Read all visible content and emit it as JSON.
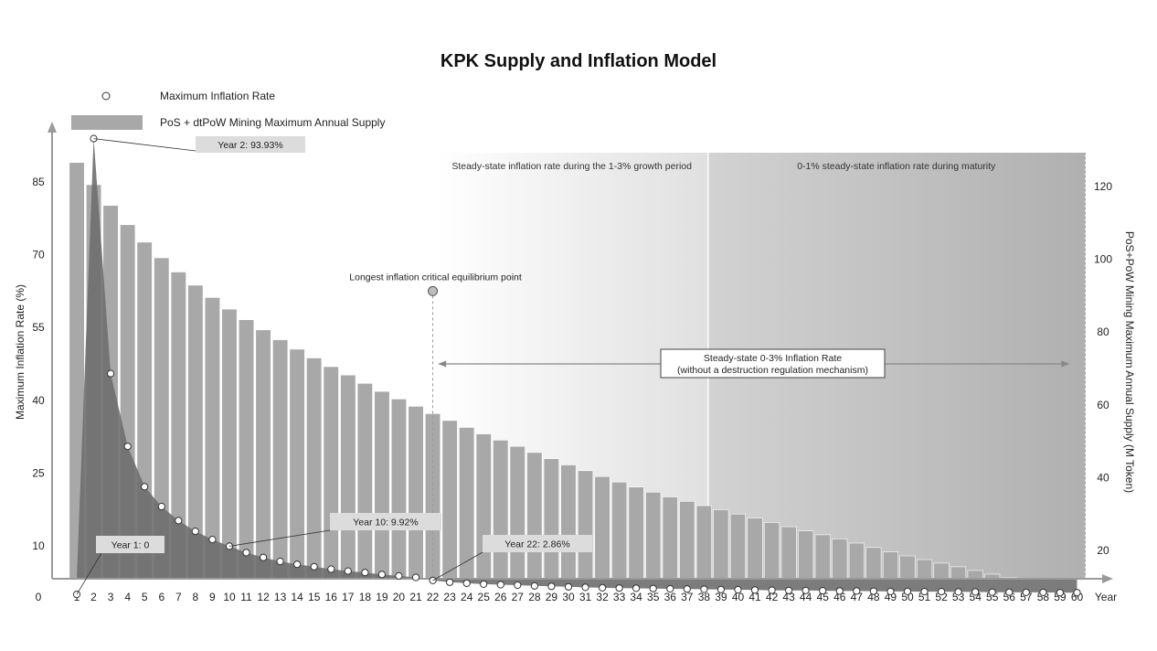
{
  "chart_data": {
    "type": "bar+line",
    "title": "KPK Supply and Inflation Model",
    "legend": {
      "line_label": "Maximum Inflation Rate",
      "bar_label": "PoS + dtPoW Mining Maximum Annual Supply",
      "placement": "top-left"
    },
    "xlabel": "Year",
    "x_origin_label": "0",
    "left_ylabel": "Maximum Inflation Rate (%)",
    "right_ylabel": "PoS+PoW Mining Maximum Annual Supply  (M Token)",
    "left_yticks": [
      "10",
      "25",
      "40",
      "55",
      "70",
      "85"
    ],
    "right_yticks": [
      "20",
      "40",
      "60",
      "80",
      "100",
      "120"
    ],
    "years": [
      1,
      2,
      3,
      4,
      5,
      6,
      7,
      8,
      9,
      10,
      11,
      12,
      13,
      14,
      15,
      16,
      17,
      18,
      19,
      20,
      21,
      22,
      23,
      24,
      25,
      26,
      27,
      28,
      29,
      30,
      31,
      32,
      33,
      34,
      35,
      36,
      37,
      38,
      39,
      40,
      41,
      42,
      43,
      44,
      45,
      46,
      47,
      48,
      49,
      50,
      51,
      52,
      53,
      54,
      55,
      56,
      57,
      58,
      59,
      60
    ],
    "supply_m_token": [
      126.6,
      120.5,
      114.8,
      109.5,
      104.7,
      100.4,
      96.5,
      92.9,
      89.5,
      86.3,
      83.4,
      80.6,
      77.9,
      75.3,
      72.9,
      70.5,
      68.2,
      65.9,
      63.7,
      61.6,
      59.6,
      57.6,
      55.7,
      53.8,
      52.0,
      50.3,
      48.6,
      46.9,
      45.2,
      43.5,
      41.9,
      40.3,
      38.8,
      37.4,
      36.0,
      34.7,
      33.5,
      32.3,
      31.2,
      30.0,
      28.9,
      27.7,
      26.5,
      25.4,
      24.3,
      23.2,
      22.0,
      20.8,
      19.6,
      18.5,
      17.5,
      16.5,
      15.5,
      14.5,
      13.5,
      12.5,
      11.5,
      10.5,
      9.4,
      8.5
    ],
    "inflation_pct": [
      0.0,
      93.93,
      45.5,
      30.5,
      22.2,
      18.1,
      15.2,
      13.0,
      11.3,
      9.92,
      8.6,
      7.6,
      6.8,
      6.2,
      5.7,
      5.2,
      4.8,
      4.5,
      4.1,
      3.8,
      3.5,
      2.86,
      2.5,
      2.3,
      2.1,
      2.0,
      1.9,
      1.75,
      1.65,
      1.55,
      1.45,
      1.35,
      1.3,
      1.25,
      1.2,
      1.15,
      1.1,
      1.05,
      1.0,
      0.95,
      0.9,
      0.85,
      0.8,
      0.8,
      0.75,
      0.7,
      0.7,
      0.65,
      0.6,
      0.6,
      0.55,
      0.55,
      0.5,
      0.5,
      0.45,
      0.45,
      0.4,
      0.4,
      0.35,
      0.35
    ],
    "regions": [
      {
        "label": "Steady-state inflation rate during the 1-3% growth period",
        "from_year": 22.2,
        "to_year": 38.2
      },
      {
        "label": "0-1% steady-state inflation rate during maturity",
        "from_year": 38.2,
        "to_year": 60
      }
    ],
    "equilibrium_point": {
      "label": "Longest inflation critical equilibrium point",
      "year": 22,
      "rate": 62.5
    },
    "steady_state_box": {
      "line1": "Steady-state 0-3% Inflation Rate",
      "line2": "(without a destruction regulation mechanism)"
    },
    "callouts": [
      {
        "text": "Year 1: 0",
        "year": 1
      },
      {
        "text": "Year 2: 93.93%",
        "year": 2
      },
      {
        "text": "Year 10: 9.92%",
        "year": 10
      },
      {
        "text": "Year 22: 2.86%",
        "year": 22
      }
    ]
  },
  "colors": {
    "bar": "#a8a8a8",
    "bar_dark": "#8f8f8f",
    "area": "#6e6e6e",
    "axis": "#9a9a9a",
    "region1_start": "#ffffff",
    "region1_end": "#e0e0e0",
    "region2_start": "#d2d2d2",
    "region2_end": "#b0b0b0",
    "callout_bg": "#dcdcdc",
    "marker_fill": "#ffffff",
    "marker_stroke": "#333333"
  }
}
